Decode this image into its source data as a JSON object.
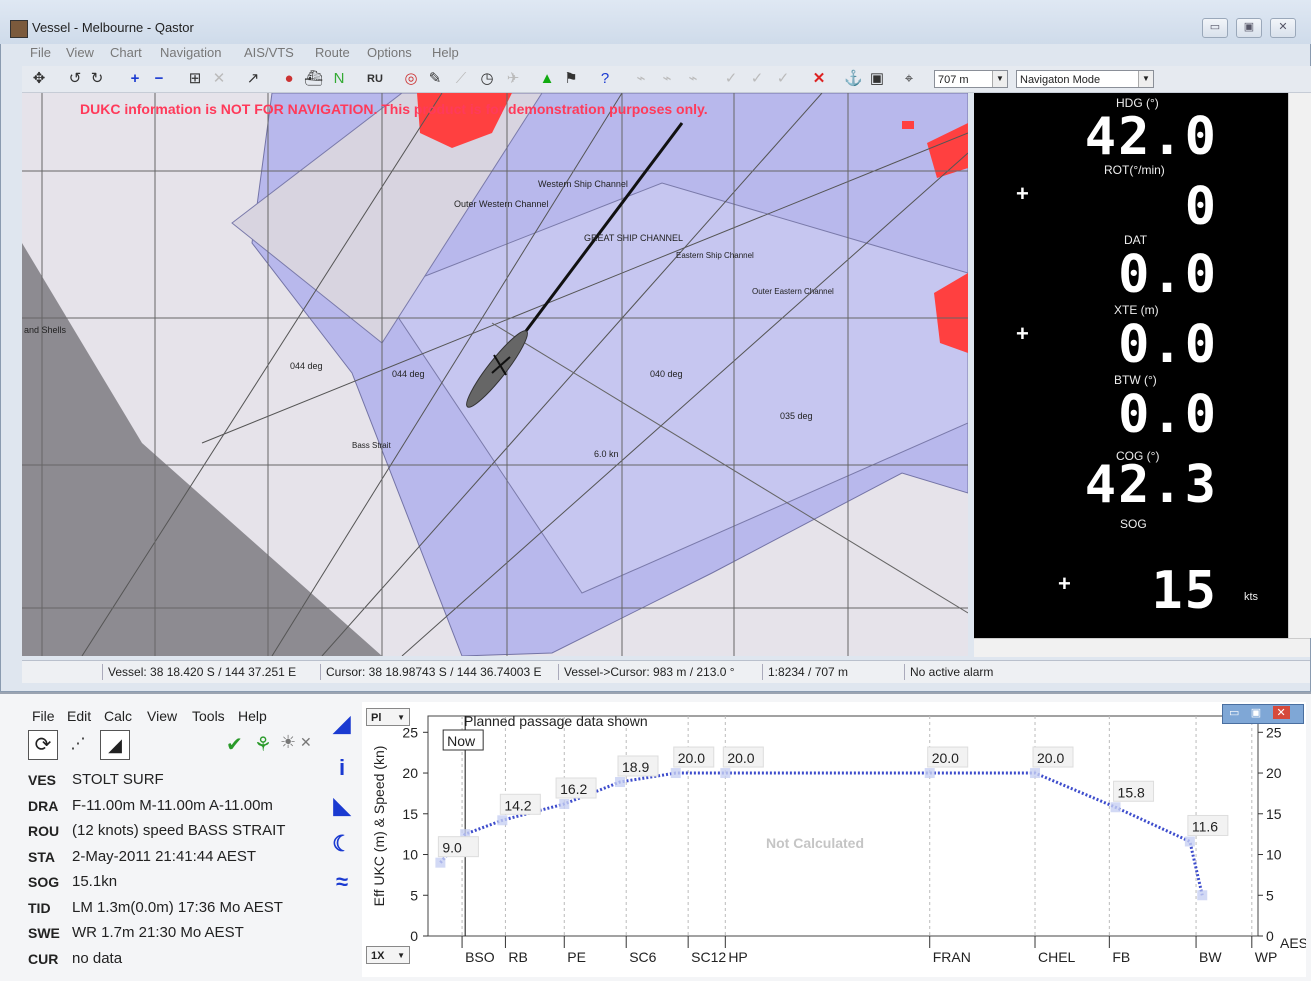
{
  "window": {
    "title": "Vessel - Melbourne - Qastor",
    "controls": [
      "▭",
      "▣",
      "✕"
    ]
  },
  "menubar": [
    "File",
    "View",
    "Chart",
    "Navigation",
    "AIS/VTS",
    "Route",
    "Options",
    "Help"
  ],
  "toolbar": {
    "range_select": "707 m",
    "mode_select": "Navigaton Mode"
  },
  "chart": {
    "warning": "DUKC information is NOT FOR NAVIGATION. This product is for demonstration purposes only.",
    "labels": {
      "western": "Western Ship Channel",
      "outer_western": "Outer Western Channel",
      "great": "GREAT SHIP CHANNEL",
      "eastern": "Eastern Ship Channel",
      "outer_eastern": "Outer Eastern Channel",
      "sand": "and Shells",
      "bass": "Bass Strait",
      "deg1": "044 deg",
      "deg2": "044 deg",
      "deg3": "040 deg",
      "deg4": "035 deg",
      "speed": "6.0 kn"
    },
    "colors": {
      "sea": "#e6e3ea",
      "channel": "#b7b7ee",
      "land": "#ff4040",
      "dark": "#8d8b91"
    }
  },
  "instrument": {
    "hdg_label": "HDG (°)",
    "hdg": "42.0",
    "rot_label": "ROT(°/min)",
    "rot": "0",
    "dat_label": "DAT",
    "dat": "0.0",
    "xte_label": "XTE (m)",
    "xte": "0.0",
    "btw_label": "BTW (°)",
    "btw": "0.0",
    "cog_label": "COG (°)",
    "cog": "42.3",
    "sog_label": "SOG",
    "sog": "15",
    "sog_unit": "kts",
    "plus": "+"
  },
  "statusbar": {
    "vessel": "Vessel: 38 18.420 S / 144 37.251 E",
    "cursor": "Cursor: 38 18.98743 S / 144 36.74003 E",
    "vessel_cursor": "Vessel->Cursor: 983 m / 213.0 °",
    "scale": "1:8234 / 707 m",
    "alarm": "No active alarm"
  },
  "dukc": {
    "menu": [
      "File",
      "Edit",
      "Calc",
      "View",
      "Tools",
      "Help"
    ],
    "fields": [
      {
        "key": "VES",
        "value": "STOLT SURF"
      },
      {
        "key": "DRA",
        "value": "F-11.00m M-11.00m A-11.00m"
      },
      {
        "key": "ROU",
        "value": "(12 knots) speed BASS STRAIT"
      },
      {
        "key": "STA",
        "value": "2-May-2011 21:41:44 AEST"
      },
      {
        "key": "SOG",
        "value": "15.1kn"
      },
      {
        "key": "TID",
        "value": "LM 1.3m(0.0m) 17:36 Mo AEST"
      },
      {
        "key": "SWE",
        "value": "WR 1.7m 21:30 Mo AEST"
      },
      {
        "key": "CUR",
        "value": "no data"
      }
    ],
    "plot_sel": "Pl",
    "zoom_sel": "1X"
  },
  "chart_data": {
    "type": "line",
    "title": "Planned passage data shown",
    "ylabel": "Eff UKC (m) & Speed (kn)",
    "ylim": [
      0,
      27
    ],
    "yticks": [
      0,
      5,
      10,
      15,
      20,
      25
    ],
    "now_label": "Now",
    "not_calculated": "Not Calculated",
    "x": [
      0,
      1,
      2,
      3,
      4,
      5,
      6,
      7,
      8,
      9,
      10,
      11,
      12
    ],
    "waypoints": [
      {
        "x": 0.35,
        "label": "BSO"
      },
      {
        "x": 1.05,
        "label": "RB"
      },
      {
        "x": 2.0,
        "label": "PE"
      },
      {
        "x": 3.0,
        "label": "SC6"
      },
      {
        "x": 4.0,
        "label": "SC12"
      },
      {
        "x": 4.6,
        "label": "HP"
      },
      {
        "x": 7.9,
        "label": "FRAN"
      },
      {
        "x": 9.6,
        "label": "CHEL"
      },
      {
        "x": 10.8,
        "label": "FB"
      },
      {
        "x": 12.2,
        "label": "BW"
      },
      {
        "x": 13.1,
        "label": "WP"
      }
    ],
    "series": [
      {
        "values": [
          [
            0,
            9.0
          ],
          [
            0.4,
            12.5
          ],
          [
            1,
            14.2
          ],
          [
            2,
            16.2
          ],
          [
            2.9,
            18.9
          ],
          [
            3.8,
            20.0
          ],
          [
            4.6,
            20.0
          ],
          [
            7.9,
            20.0
          ],
          [
            9.6,
            20.0
          ],
          [
            10.9,
            15.8
          ],
          [
            12.1,
            11.6
          ],
          [
            12.3,
            5.0
          ]
        ]
      }
    ],
    "data_labels": [
      {
        "x": 0,
        "y": 9.0,
        "text": "9.0"
      },
      {
        "x": 1.0,
        "y": 14.2,
        "text": "14.2"
      },
      {
        "x": 1.9,
        "y": 16.2,
        "text": "16.2"
      },
      {
        "x": 2.9,
        "y": 18.9,
        "text": "18.9"
      },
      {
        "x": 3.8,
        "y": 20.0,
        "text": "20.0"
      },
      {
        "x": 4.6,
        "y": 20.0,
        "text": "20.0"
      },
      {
        "x": 7.9,
        "y": 20.0,
        "text": "20.0"
      },
      {
        "x": 9.6,
        "y": 20.0,
        "text": "20.0"
      },
      {
        "x": 10.9,
        "y": 15.8,
        "text": "15.8"
      },
      {
        "x": 12.1,
        "y": 11.6,
        "text": "11.6"
      }
    ],
    "extra_label": "AES"
  }
}
